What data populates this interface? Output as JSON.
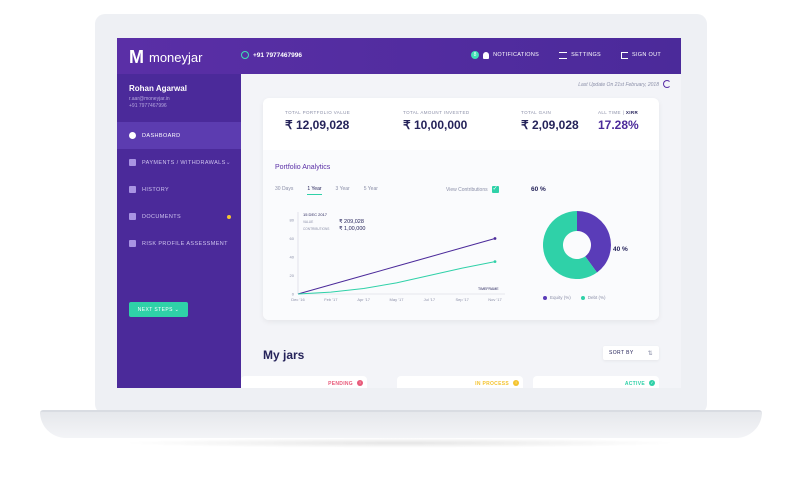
{
  "app": {
    "logo_letter": "M",
    "name": "moneyjar"
  },
  "header": {
    "phone": "+91 7977467996",
    "notification_count": "8",
    "notifications_label": "NOTIFICATIONS",
    "settings_label": "SETTINGS",
    "signout_label": "SIGN OUT"
  },
  "user": {
    "name": "Rohan Agarwal",
    "email": "r.aar@moneyjar.in",
    "phone": "+91 7977467996"
  },
  "sidebar": {
    "items": [
      {
        "label": "DASHBOARD",
        "icon": "pie-icon"
      },
      {
        "label": "PAYMENTS / WITHDRAWALS",
        "icon": "card-icon"
      },
      {
        "label": "HISTORY",
        "icon": "history-icon"
      },
      {
        "label": "DOCUMENTS",
        "icon": "document-icon"
      },
      {
        "label": "RISK PROFILE ASSESSMENT",
        "icon": "star-icon"
      }
    ],
    "next_steps": "NEXT STEPS"
  },
  "main": {
    "last_update": "Last Update On 21st February, 2018",
    "stats": {
      "total_value_label": "TOTAL PORTFOLIO VALUE",
      "total_value": "₹ 12,09,028",
      "invested_label": "TOTAL AMOUNT INVESTED",
      "invested": "₹ 10,00,000",
      "gain_label": "TOTAL GAIN",
      "gain": "₹ 2,09,028",
      "all_time_label": "ALL TIME",
      "xirr_label": "XIRR",
      "all_time": "17.28%"
    },
    "analytics": {
      "title": "Portfolio Analytics",
      "tabs": [
        "30 Days",
        "1 Year",
        "3 Year",
        "5 Year"
      ],
      "active_tab": 1,
      "view_contributions": "View Contributions",
      "tooltip_date": "15 DEC 2017",
      "tooltip_value_label": "VALUE",
      "tooltip_value": "₹ 209,028",
      "tooltip_contrib_label": "CONTRIBUTIONS",
      "tooltip_contrib": "₹ 1,00,000",
      "timeframe_label": "TIMEFRAME"
    },
    "jars_title": "My jars",
    "sort_label": "SORT BY",
    "jars": [
      {
        "status": "PENDING",
        "color": "#e85a7a"
      },
      {
        "status": "IN PROCESS",
        "color": "#f4c430"
      },
      {
        "status": "ACTIVE",
        "color": "#2fd1a8"
      }
    ]
  },
  "chart_data": [
    {
      "type": "line",
      "x": [
        "Dec '16",
        "Feb '17",
        "Apr '17",
        "May '17",
        "Jul '17",
        "Sep '17",
        "Nov '17"
      ],
      "yticks": [
        0,
        20,
        40,
        60,
        80
      ],
      "ylim": [
        0,
        80
      ],
      "series": [
        {
          "color": "#4b2a9a",
          "values": [
            0,
            10,
            20,
            30,
            40,
            50,
            60
          ]
        },
        {
          "color": "#2fd1a8",
          "values": [
            0,
            2,
            6,
            12,
            20,
            28,
            35
          ]
        }
      ]
    },
    {
      "type": "pie",
      "slices": [
        {
          "name": "Equity (%)",
          "value": 40,
          "color": "#5a3cb8",
          "label": "40 %"
        },
        {
          "name": "Debt (%)",
          "value": 60,
          "color": "#2fd1a8",
          "label": "60 %"
        }
      ]
    }
  ]
}
